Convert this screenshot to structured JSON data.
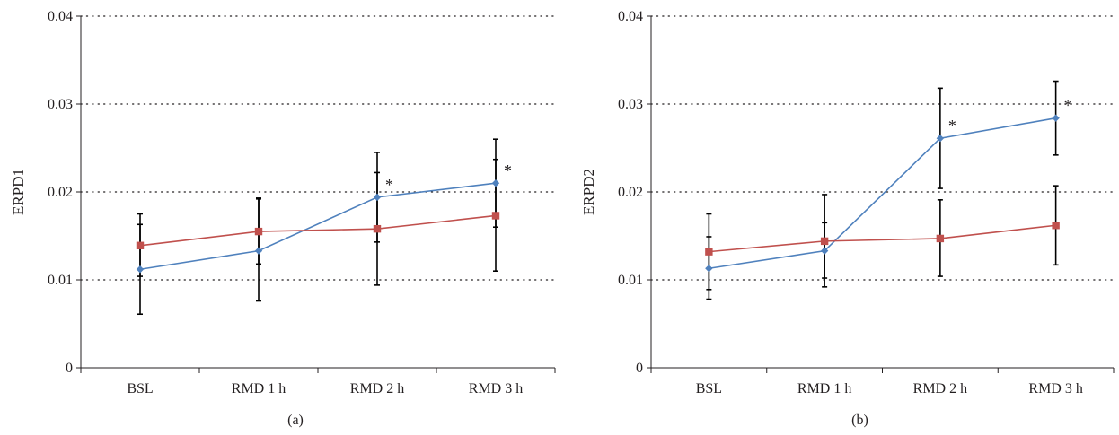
{
  "colors": {
    "series_blue": "#4f81bd",
    "series_red": "#c0504d",
    "axis": "#231f20",
    "grid": "#231f20"
  },
  "chart_data": [
    {
      "type": "line",
      "panel_label": "(a)",
      "ylabel": "ERPD1",
      "categories": [
        "BSL",
        "RMD 1 h",
        "RMD 2 h",
        "RMD 3 h"
      ],
      "ylim": [
        0,
        0.04
      ],
      "yticks": [
        "0",
        "0.01",
        "0.02",
        "0.03",
        "0.04"
      ],
      "grid": "horizontal dotted",
      "legend": "none",
      "series": [
        {
          "marker": "diamond",
          "color": "#4f81bd",
          "values": [
            0.0112,
            0.0133,
            0.0194,
            0.021
          ],
          "error_low": [
            0.0061,
            0.0076,
            0.0143,
            0.016
          ],
          "error_high": [
            0.0163,
            0.0193,
            0.0245,
            0.026
          ],
          "significance": [
            "",
            "",
            "*",
            "*"
          ]
        },
        {
          "marker": "square",
          "color": "#c0504d",
          "values": [
            0.0139,
            0.0155,
            0.0158,
            0.0173
          ],
          "error_low": [
            0.0104,
            0.0118,
            0.0094,
            0.011
          ],
          "error_high": [
            0.0175,
            0.0192,
            0.0222,
            0.0237
          ],
          "significance": [
            "",
            "",
            "",
            ""
          ]
        }
      ]
    },
    {
      "type": "line",
      "panel_label": "(b)",
      "ylabel": "ERPD2",
      "categories": [
        "BSL",
        "RMD 1 h",
        "RMD 2 h",
        "RMD 3 h"
      ],
      "ylim": [
        0,
        0.04
      ],
      "yticks": [
        "0",
        "0.01",
        "0.02",
        "0.03",
        "0.04"
      ],
      "grid": "horizontal dotted",
      "legend": "none",
      "series": [
        {
          "marker": "diamond",
          "color": "#4f81bd",
          "values": [
            0.0113,
            0.0133,
            0.0261,
            0.0284
          ],
          "error_low": [
            0.0078,
            0.0092,
            0.0204,
            0.0242
          ],
          "error_high": [
            0.0149,
            0.0165,
            0.0318,
            0.0326
          ],
          "significance": [
            "",
            "",
            "*",
            "*"
          ]
        },
        {
          "marker": "square",
          "color": "#c0504d",
          "values": [
            0.0132,
            0.0144,
            0.0147,
            0.0162
          ],
          "error_low": [
            0.0089,
            0.0102,
            0.0104,
            0.0117
          ],
          "error_high": [
            0.0175,
            0.0197,
            0.0191,
            0.0207
          ],
          "significance": [
            "",
            "",
            "",
            ""
          ]
        }
      ]
    }
  ]
}
